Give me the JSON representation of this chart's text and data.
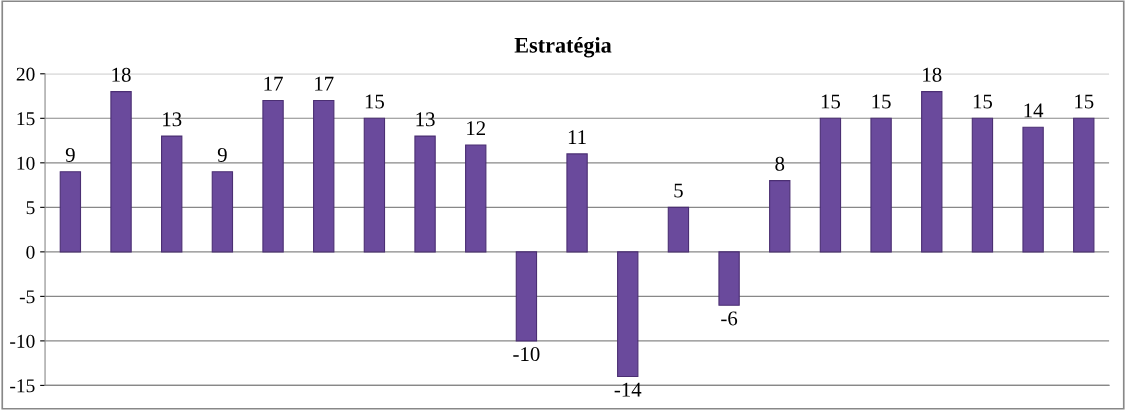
{
  "chart_data": {
    "type": "bar",
    "title": "Estratégia",
    "categories": [
      null,
      null,
      null,
      null,
      null,
      null,
      null,
      null,
      null,
      null,
      null,
      null,
      null,
      null,
      null,
      null,
      null,
      null,
      null,
      null,
      null
    ],
    "values": [
      9,
      18,
      13,
      9,
      17,
      17,
      15,
      13,
      12,
      -10,
      11,
      -14,
      5,
      -6,
      8,
      15,
      15,
      18,
      15,
      14,
      15
    ],
    "color": "#6a4a9c",
    "ylim": [
      -15,
      20
    ],
    "yticks": [
      -15,
      -10,
      -5,
      0,
      5,
      10,
      15,
      20
    ],
    "grid": "y",
    "data_labels": true
  }
}
